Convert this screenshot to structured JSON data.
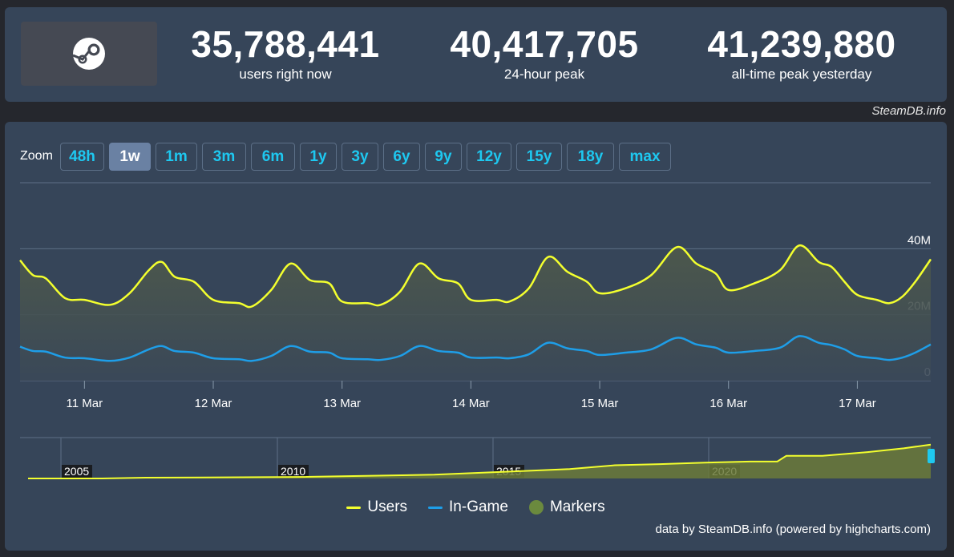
{
  "header": {
    "logo_icon": "steam-logo-icon",
    "stats": [
      {
        "value": "35,788,441",
        "label": "users right now"
      },
      {
        "value": "40,417,705",
        "label": "24-hour peak"
      },
      {
        "value": "41,239,880",
        "label": "all-time peak yesterday"
      }
    ],
    "credit": "SteamDB.info"
  },
  "zoom": {
    "label": "Zoom",
    "options": [
      "48h",
      "1w",
      "1m",
      "3m",
      "6m",
      "1y",
      "3y",
      "6y",
      "9y",
      "12y",
      "15y",
      "18y",
      "max"
    ],
    "active": "1w"
  },
  "legend": {
    "users": "Users",
    "ingame": "In-Game",
    "markers": "Markers"
  },
  "credit_bottom": "data by SteamDB.info (powered by highcharts.com)",
  "colors": {
    "users": "#f3ff2e",
    "ingame": "#1e9ee8",
    "markers": "#6b8a3e",
    "accent": "#1ec8f0"
  },
  "chart_data": {
    "type": "line",
    "title": "",
    "x_tick_labels": [
      "11 Mar",
      "12 Mar",
      "13 Mar",
      "14 Mar",
      "15 Mar",
      "16 Mar",
      "17 Mar"
    ],
    "y_tick_labels": [
      "0",
      "20M",
      "40M"
    ],
    "ylim": [
      0,
      60000000
    ],
    "x_range_days": [
      10.5,
      17.57
    ],
    "series": [
      {
        "name": "Users",
        "points": [
          [
            10.5,
            36.5
          ],
          [
            10.6,
            32.0
          ],
          [
            10.7,
            31.0
          ],
          [
            10.85,
            25.0
          ],
          [
            11.0,
            24.5
          ],
          [
            11.2,
            23.0
          ],
          [
            11.35,
            26.5
          ],
          [
            11.5,
            33.5
          ],
          [
            11.6,
            36.0
          ],
          [
            11.7,
            31.5
          ],
          [
            11.85,
            30.0
          ],
          [
            12.0,
            24.5
          ],
          [
            12.2,
            23.5
          ],
          [
            12.3,
            22.5
          ],
          [
            12.45,
            27.5
          ],
          [
            12.6,
            35.5
          ],
          [
            12.75,
            30.5
          ],
          [
            12.9,
            29.5
          ],
          [
            13.0,
            24.0
          ],
          [
            13.2,
            23.5
          ],
          [
            13.3,
            23.0
          ],
          [
            13.45,
            27.0
          ],
          [
            13.6,
            35.5
          ],
          [
            13.75,
            31.0
          ],
          [
            13.9,
            29.5
          ],
          [
            14.0,
            24.5
          ],
          [
            14.2,
            24.5
          ],
          [
            14.3,
            24.0
          ],
          [
            14.45,
            28.0
          ],
          [
            14.6,
            37.5
          ],
          [
            14.75,
            33.0
          ],
          [
            14.9,
            30.0
          ],
          [
            15.0,
            26.5
          ],
          [
            15.2,
            28.0
          ],
          [
            15.4,
            32.0
          ],
          [
            15.6,
            40.5
          ],
          [
            15.75,
            35.5
          ],
          [
            15.9,
            32.5
          ],
          [
            16.0,
            27.5
          ],
          [
            16.2,
            29.5
          ],
          [
            16.4,
            33.5
          ],
          [
            16.55,
            41.0
          ],
          [
            16.7,
            36.0
          ],
          [
            16.8,
            34.5
          ],
          [
            16.9,
            30.0
          ],
          [
            17.0,
            26.0
          ],
          [
            17.15,
            24.5
          ],
          [
            17.25,
            23.5
          ],
          [
            17.35,
            25.5
          ],
          [
            17.45,
            30.0
          ],
          [
            17.57,
            36.8
          ]
        ]
      },
      {
        "name": "In-Game",
        "points": [
          [
            10.5,
            10.3
          ],
          [
            10.6,
            9.0
          ],
          [
            10.7,
            8.8
          ],
          [
            10.85,
            7.0
          ],
          [
            11.0,
            6.8
          ],
          [
            11.2,
            6.0
          ],
          [
            11.35,
            7.0
          ],
          [
            11.5,
            9.5
          ],
          [
            11.6,
            10.5
          ],
          [
            11.7,
            9.0
          ],
          [
            11.85,
            8.5
          ],
          [
            12.0,
            6.8
          ],
          [
            12.2,
            6.5
          ],
          [
            12.3,
            6.0
          ],
          [
            12.45,
            7.5
          ],
          [
            12.6,
            10.5
          ],
          [
            12.75,
            8.8
          ],
          [
            12.9,
            8.5
          ],
          [
            13.0,
            6.8
          ],
          [
            13.2,
            6.5
          ],
          [
            13.3,
            6.3
          ],
          [
            13.45,
            7.5
          ],
          [
            13.6,
            10.5
          ],
          [
            13.75,
            9.0
          ],
          [
            13.9,
            8.5
          ],
          [
            14.0,
            7.0
          ],
          [
            14.2,
            7.0
          ],
          [
            14.3,
            6.8
          ],
          [
            14.45,
            8.0
          ],
          [
            14.6,
            11.5
          ],
          [
            14.75,
            9.8
          ],
          [
            14.9,
            9.0
          ],
          [
            15.0,
            7.8
          ],
          [
            15.2,
            8.5
          ],
          [
            15.4,
            9.5
          ],
          [
            15.6,
            13.0
          ],
          [
            15.75,
            11.0
          ],
          [
            15.9,
            10.0
          ],
          [
            16.0,
            8.5
          ],
          [
            16.2,
            9.0
          ],
          [
            16.4,
            10.0
          ],
          [
            16.55,
            13.5
          ],
          [
            16.7,
            11.5
          ],
          [
            16.8,
            10.8
          ],
          [
            16.9,
            9.5
          ],
          [
            17.0,
            7.5
          ],
          [
            17.15,
            6.8
          ],
          [
            17.25,
            6.3
          ],
          [
            17.35,
            7.0
          ],
          [
            17.45,
            8.5
          ],
          [
            17.57,
            11.0
          ]
        ]
      }
    ],
    "navigator": {
      "x_labels": [
        "2005",
        "2010",
        "2015",
        "2020"
      ],
      "users_range_fraction": [
        0.04,
        0.88
      ]
    }
  }
}
